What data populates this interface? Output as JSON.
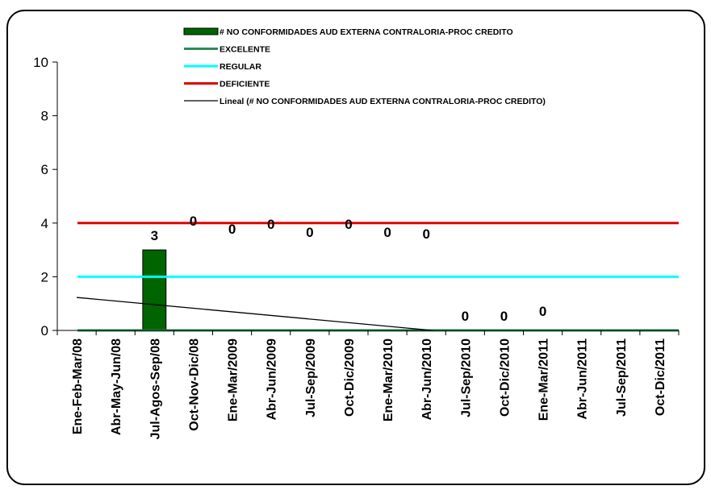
{
  "chart_data": {
    "type": "bar",
    "categories": [
      "Ene-Feb-Mar/08",
      "Abr-May-Jun/08",
      "Jul-Agos-Sep/08",
      "Oct-Nov-Dic/08",
      "Ene-Mar/2009",
      "Abr-Jun/2009",
      "Jul-Sep/2009",
      "Oct-Dic/2009",
      "Ene-Mar/2010",
      "Abr-Jun/2010",
      "Jul-Sep/2010",
      "Oct-Dic/2010",
      "Ene-Mar/2011",
      "Abr-Jun/2011",
      "Jul-Sep/2011",
      "Oct-Dic/2011"
    ],
    "ylim": [
      0,
      10
    ],
    "yticks": [
      0,
      2,
      4,
      6,
      8,
      10
    ],
    "legend_position": "top-center",
    "series": [
      {
        "name": "# NO CONFORMIDADES AUD EXTERNA CONTRALORIA-PROC CREDITO",
        "kind": "bar",
        "color": "#006400",
        "values": [
          null,
          null,
          3,
          0,
          0,
          0,
          0,
          0,
          0,
          0,
          0,
          0,
          0,
          null,
          null,
          null
        ],
        "labels": [
          "",
          "",
          "3",
          "0",
          "0",
          "0",
          "0",
          "0",
          "0",
          "0",
          "0",
          "0",
          "0",
          "",
          "",
          ""
        ]
      },
      {
        "name": "EXCELENTE",
        "kind": "line",
        "color": "#2e8b57",
        "value": 0
      },
      {
        "name": "REGULAR",
        "kind": "line",
        "color": "#00ffff",
        "value": 2
      },
      {
        "name": "DEFICIENTE",
        "kind": "line",
        "color": "#e00000",
        "value": 4
      },
      {
        "name": "Lineal (# NO CONFORMIDADES AUD EXTERNA CONTRALORIA-PROC CREDITO)",
        "kind": "trendline",
        "color": "#000000",
        "x": [
          "Ene-Feb-Mar/08",
          "Abr-Jun/2010"
        ],
        "y": [
          1.23,
          0
        ]
      }
    ]
  }
}
